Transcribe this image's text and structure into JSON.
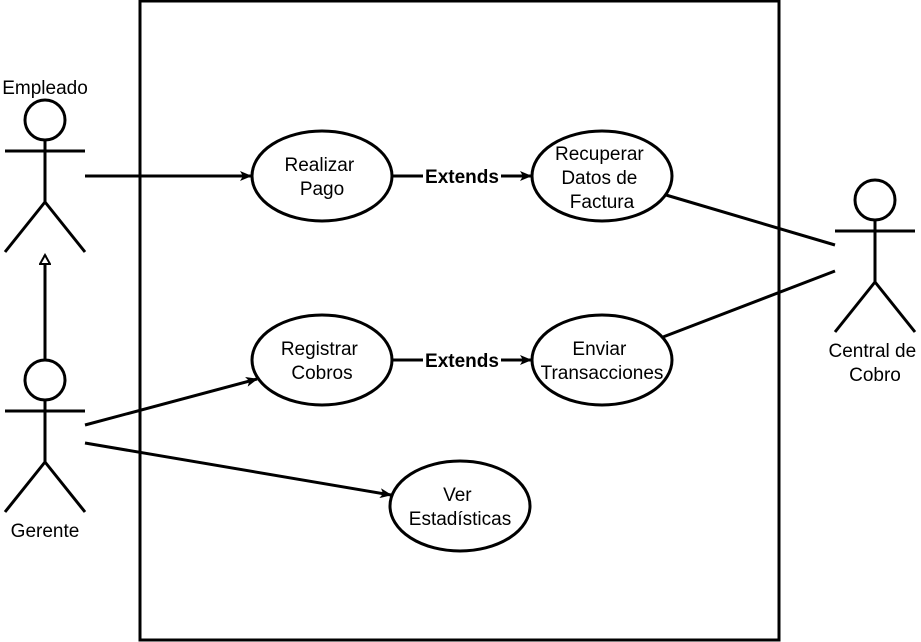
{
  "actors": {
    "empleado": "Empleado",
    "gerente": "Gerente",
    "central_line1": "Central de",
    "central_line2": "Cobro"
  },
  "use_cases": {
    "realizar_pago": [
      "Realizar",
      "Pago"
    ],
    "recuperar_datos": [
      "Recuperar",
      "Datos de",
      "Factura"
    ],
    "registrar_cobros": [
      "Registrar",
      "Cobros"
    ],
    "enviar_transacciones": [
      "Enviar",
      "Transacciones"
    ],
    "ver_estadisticas": [
      "Ver",
      "Estadísticas"
    ]
  },
  "relations": {
    "extends_1": "Extends",
    "extends_2": "Extends"
  },
  "colors": {
    "stroke": "#000000",
    "background": "#ffffff"
  }
}
